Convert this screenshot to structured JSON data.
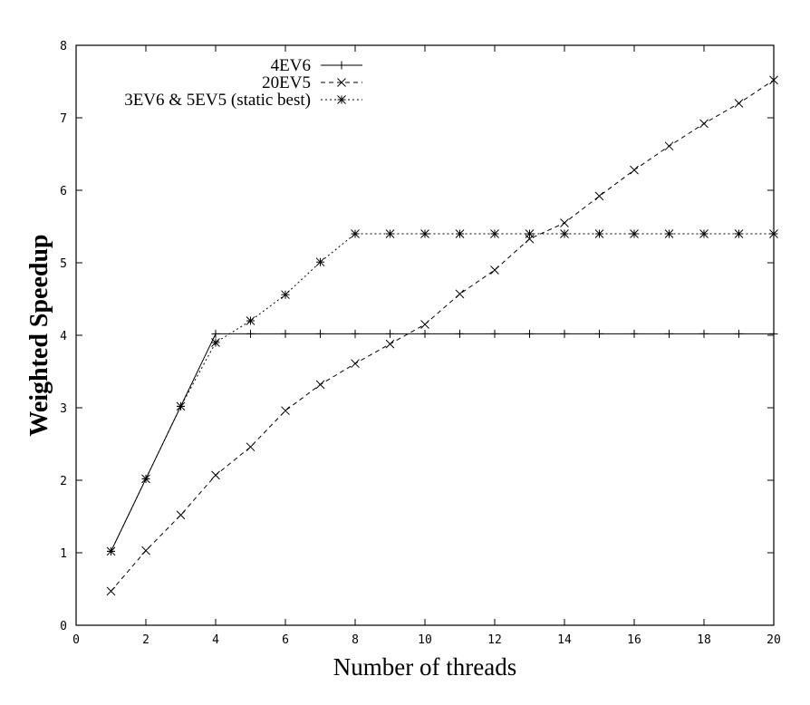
{
  "chart_data": {
    "type": "line",
    "title": "",
    "xlabel": "Number of threads",
    "ylabel": "Weighted Speedup",
    "xlim": [
      0,
      20
    ],
    "ylim": [
      0,
      8
    ],
    "xticks": [
      "0",
      "2",
      "4",
      "6",
      "8",
      "10",
      "12",
      "14",
      "16",
      "18",
      "20"
    ],
    "yticks": [
      "0",
      "1",
      "2",
      "3",
      "4",
      "5",
      "6",
      "7",
      "8"
    ],
    "grid": false,
    "legend_position": "top-left",
    "series": [
      {
        "name": "4EV6",
        "line_style": "solid",
        "marker": "plus",
        "x": [
          1,
          2,
          3,
          4,
          5,
          6,
          7,
          8,
          9,
          10,
          11,
          12,
          13,
          14,
          15,
          16,
          17,
          18,
          19,
          20
        ],
        "y": [
          1.02,
          2.02,
          3.02,
          4.02,
          4.02,
          4.02,
          4.02,
          4.02,
          4.02,
          4.02,
          4.02,
          4.02,
          4.02,
          4.02,
          4.02,
          4.02,
          4.02,
          4.02,
          4.02,
          4.02
        ]
      },
      {
        "name": "20EV5",
        "line_style": "dashed",
        "marker": "cross",
        "x": [
          1,
          2,
          3,
          4,
          5,
          6,
          7,
          8,
          9,
          10,
          11,
          12,
          13,
          14,
          15,
          16,
          17,
          18,
          19,
          20
        ],
        "y": [
          0.47,
          1.03,
          1.52,
          2.07,
          2.46,
          2.96,
          3.32,
          3.61,
          3.88,
          4.15,
          4.57,
          4.9,
          5.33,
          5.55,
          5.92,
          6.28,
          6.61,
          6.92,
          7.2,
          7.52
        ]
      },
      {
        "name": "3EV6 & 5EV5 (static best)",
        "line_style": "dotted",
        "marker": "star",
        "x": [
          1,
          2,
          3,
          4,
          5,
          6,
          7,
          8,
          9,
          10,
          11,
          12,
          13,
          14,
          15,
          16,
          17,
          18,
          19,
          20
        ],
        "y": [
          1.02,
          2.02,
          3.02,
          3.9,
          4.2,
          4.56,
          5.01,
          5.4,
          5.4,
          5.4,
          5.4,
          5.4,
          5.4,
          5.4,
          5.4,
          5.4,
          5.4,
          5.4,
          5.4,
          5.4
        ]
      }
    ]
  }
}
